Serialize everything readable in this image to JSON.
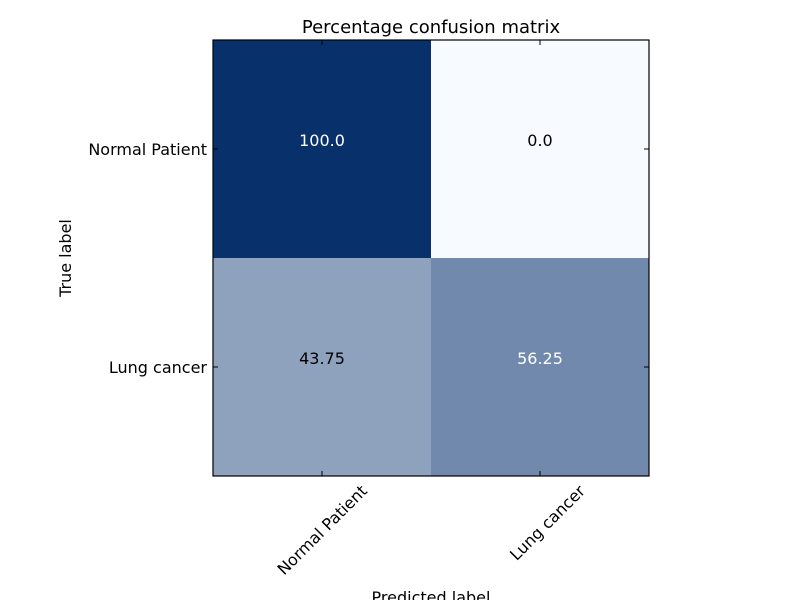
{
  "chart_data": {
    "type": "heatmap",
    "title": "Percentage confusion matrix",
    "xlabel": "Predicted label",
    "ylabel": "True label",
    "x_tick_labels": [
      "Normal Patient",
      "Lung cancer"
    ],
    "y_tick_labels": [
      "Normal Patient",
      "Lung cancer"
    ],
    "values": [
      [
        100.0,
        0.0
      ],
      [
        43.75,
        56.25
      ]
    ],
    "cell_labels": [
      [
        "100.0",
        "0.0"
      ],
      [
        "43.75",
        "56.25"
      ]
    ],
    "colormap": "Blues",
    "colors": {
      "high": "#08306b",
      "low": "#f7fbff",
      "text_on_dark": "#ffffff",
      "text_on_light": "#000000"
    },
    "value_range": [
      0,
      100
    ],
    "grid": false
  }
}
